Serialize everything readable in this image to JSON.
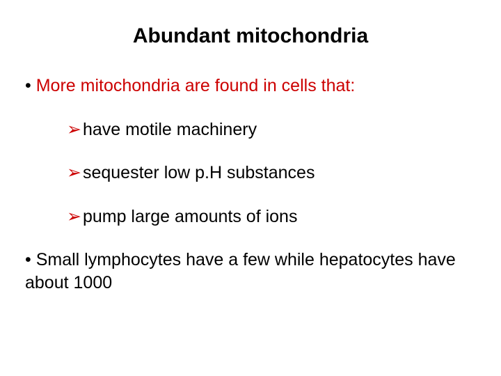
{
  "colors": {
    "red": "#cc0000",
    "black": "#000000",
    "background": "#ffffff"
  },
  "typography": {
    "title_fontsize": 30,
    "body_fontsize": 25,
    "font_family": "Verdana"
  },
  "title": "Abundant mitochondria",
  "bullets": {
    "main1": "More mitochondria are found in cells that:",
    "sub1": "have motile machinery",
    "sub2": "sequester low p.H substances",
    "sub3": "pump large amounts of ions",
    "main2": "Small lymphocytes have a few while hepatocytes have about 1000"
  },
  "markers": {
    "dot": "•",
    "arrow": "➢"
  }
}
